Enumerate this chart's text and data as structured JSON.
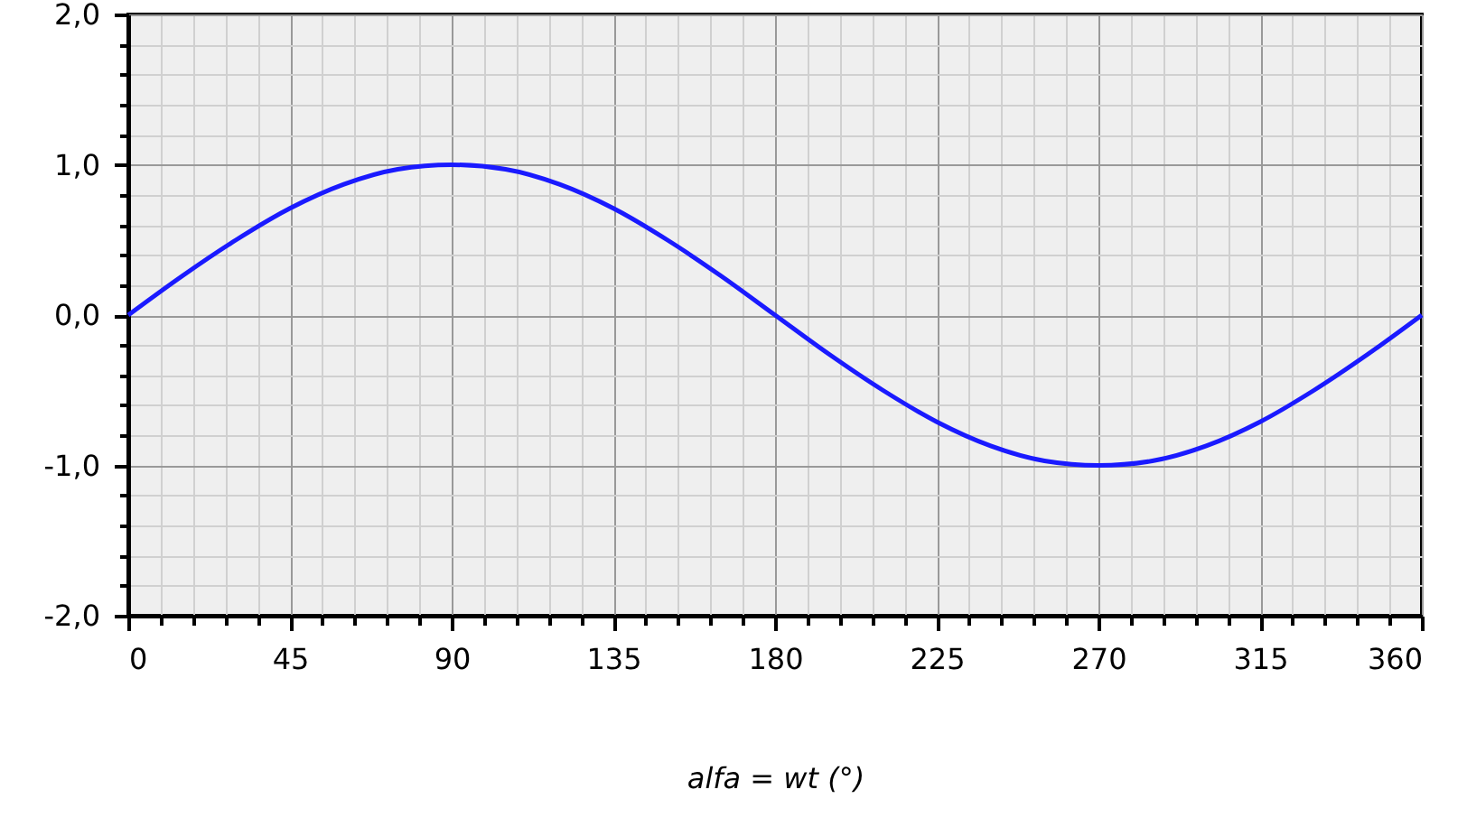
{
  "chart_data": {
    "type": "line",
    "xlabel": "alfa = wt (°)",
    "x": [
      0,
      15,
      30,
      45,
      60,
      75,
      90,
      105,
      120,
      135,
      150,
      165,
      180,
      195,
      210,
      225,
      240,
      255,
      270,
      285,
      300,
      315,
      330,
      345,
      360
    ],
    "series": [
      {
        "color": "#1a1aff",
        "values": [
          0,
          0.26,
          0.5,
          0.71,
          0.87,
          0.97,
          1,
          0.97,
          0.87,
          0.71,
          0.5,
          0.26,
          0,
          -0.26,
          -0.5,
          -0.71,
          -0.87,
          -0.97,
          -1,
          -0.97,
          -0.87,
          -0.71,
          -0.5,
          -0.26,
          0
        ]
      }
    ],
    "xlim": [
      0,
      360
    ],
    "xticks": [
      0,
      {
        "value": 9,
        "label": null
      },
      {
        "value": 18,
        "label": null
      },
      {
        "value": 27,
        "label": null
      },
      {
        "value": 36,
        "label": null
      },
      45,
      {
        "value": 54,
        "label": null
      },
      {
        "value": 63,
        "label": null
      },
      {
        "value": 72,
        "label": null
      },
      {
        "value": 81,
        "label": null
      },
      90,
      {
        "value": 99,
        "label": null
      },
      {
        "value": 108,
        "label": null
      },
      {
        "value": 117,
        "label": null
      },
      {
        "value": 126,
        "label": null
      },
      135,
      {
        "value": 144,
        "label": null
      },
      {
        "value": 153,
        "label": null
      },
      {
        "value": 162,
        "label": null
      },
      {
        "value": 171,
        "label": null
      },
      180,
      {
        "value": 189,
        "label": null
      },
      {
        "value": 198,
        "label": null
      },
      {
        "value": 207,
        "label": null
      },
      {
        "value": 216,
        "label": null
      },
      225,
      {
        "value": 234,
        "label": null
      },
      {
        "value": 243,
        "label": null
      },
      {
        "value": 252,
        "label": null
      },
      {
        "value": 261,
        "label": null
      },
      270,
      {
        "value": 279,
        "label": null
      },
      {
        "value": 288,
        "label": null
      },
      {
        "value": 297,
        "label": null
      },
      {
        "value": 306,
        "label": null
      },
      315,
      {
        "value": 324,
        "label": null
      },
      {
        "value": 333,
        "label": null
      },
      {
        "value": 342,
        "label": null
      },
      {
        "value": 351,
        "label": null
      },
      360
    ],
    "ylim": [
      -2,
      2
    ],
    "yticks": [
      {
        "value": -2,
        "label": "-2,0"
      },
      {
        "value": -1.8,
        "label": null
      },
      {
        "value": -1.6,
        "label": null
      },
      {
        "value": -1.4,
        "label": null
      },
      {
        "value": -1.2,
        "label": null
      },
      {
        "value": -1,
        "label": "-1,0"
      },
      {
        "value": -0.8,
        "label": null
      },
      {
        "value": -0.6,
        "label": null
      },
      {
        "value": -0.4,
        "label": null
      },
      {
        "value": -0.2,
        "label": null
      },
      {
        "value": 0,
        "label": "0,0"
      },
      {
        "value": 0.2,
        "label": null
      },
      {
        "value": 0.4,
        "label": null
      },
      {
        "value": 0.6,
        "label": null
      },
      {
        "value": 0.8,
        "label": null
      },
      {
        "value": 1,
        "label": "1,0"
      },
      {
        "value": 1.2,
        "label": null
      },
      {
        "value": 1.4,
        "label": null
      },
      {
        "value": 1.6,
        "label": null
      },
      {
        "value": 1.8,
        "label": null
      },
      {
        "value": 2,
        "label": "2,0"
      }
    ],
    "grid": true,
    "marker": "none",
    "line_style": "solid"
  }
}
